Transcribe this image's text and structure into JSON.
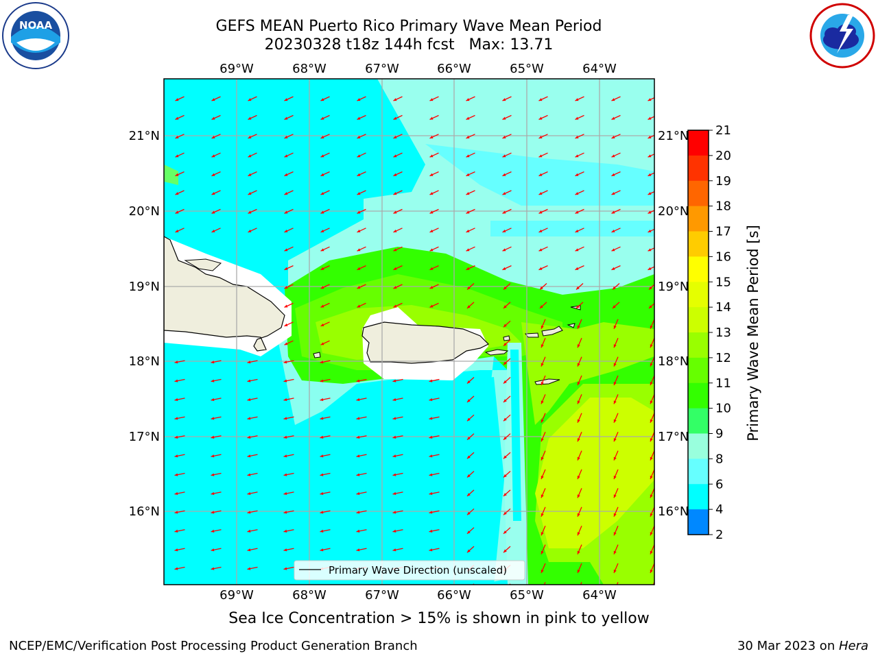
{
  "header": {
    "title_line1": "GEFS MEAN Puerto Rico Primary Wave Mean Period",
    "title_line2": "20230328 t18z 144h fcst   Max: 13.71"
  },
  "logos": {
    "left": {
      "icon": "noaa-logo-icon",
      "text": "NOAA"
    },
    "right": {
      "icon": "nws-logo-icon"
    }
  },
  "map": {
    "lon_labels": [
      "69°W",
      "68°W",
      "67°W",
      "66°W",
      "65°W",
      "64°W"
    ],
    "lat_labels": [
      "21°N",
      "20°N",
      "19°N",
      "18°N",
      "17°N",
      "16°N"
    ],
    "legend_label": "Primary Wave Direction (unscaled)",
    "arrow_color": "#ff0000"
  },
  "colorbar": {
    "label": "Primary Wave Mean Period [s]",
    "ticks": [
      "21",
      "20",
      "19",
      "18",
      "17",
      "16",
      "15",
      "14",
      "13",
      "12",
      "11",
      "10",
      "9",
      "8",
      "6",
      "4",
      "2"
    ],
    "colors": [
      "#ff0000",
      "#ff3300",
      "#ff6600",
      "#ff9900",
      "#ffcc00",
      "#ffff00",
      "#e5ff00",
      "#ccff00",
      "#99ff00",
      "#66ff00",
      "#33ff00",
      "#33ff66",
      "#99ffdd",
      "#66ffff",
      "#00ffff",
      "#0088ff",
      "#0000ff"
    ]
  },
  "note": "Sea Ice Concentration > 15% is shown in pink to yellow",
  "footer": {
    "left": "NCEP/EMC/Verification Post Processing Product Generation Branch",
    "date": "30 Mar 2023 on ",
    "machine": "Hera"
  }
}
